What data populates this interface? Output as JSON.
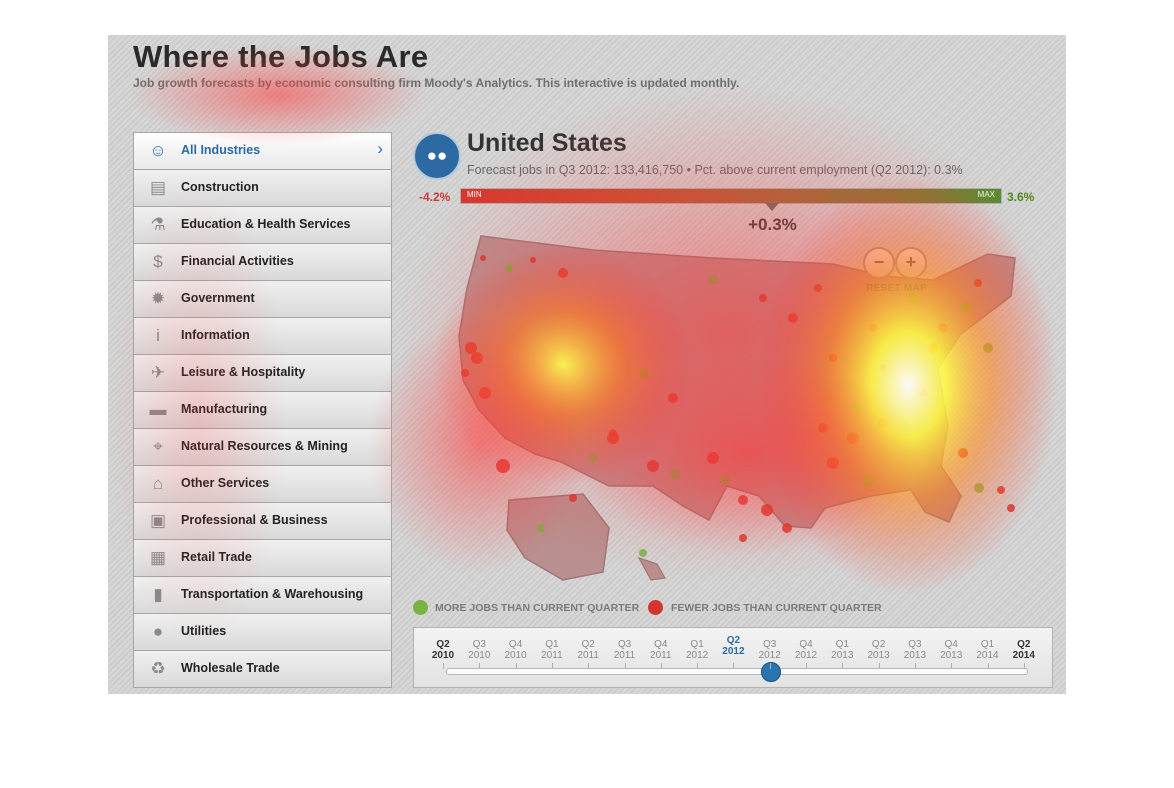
{
  "header": {
    "title": "Where the Jobs Are",
    "subtitle": "Job growth forecasts by economic consulting firm Moody's Analytics. This interactive is updated monthly."
  },
  "sidebar": {
    "items": [
      {
        "label": "All Industries",
        "icon": "people-icon",
        "active": true
      },
      {
        "label": "Construction",
        "icon": "barrier-icon",
        "active": false
      },
      {
        "label": "Education & Health Services",
        "icon": "flask-icon",
        "active": false
      },
      {
        "label": "Financial Activities",
        "icon": "dollar-icon",
        "active": false
      },
      {
        "label": "Government",
        "icon": "star-seal-icon",
        "active": false
      },
      {
        "label": "Information",
        "icon": "info-icon",
        "active": false
      },
      {
        "label": "Leisure & Hospitality",
        "icon": "airplane-icon",
        "active": false
      },
      {
        "label": "Manufacturing",
        "icon": "car-icon",
        "active": false
      },
      {
        "label": "Natural Resources & Mining",
        "icon": "target-icon",
        "active": false
      },
      {
        "label": "Other Services",
        "icon": "house-icon",
        "active": false
      },
      {
        "label": "Professional & Business",
        "icon": "briefcase-icon",
        "active": false
      },
      {
        "label": "Retail Trade",
        "icon": "cart-icon",
        "active": false
      },
      {
        "label": "Transportation & Warehousing",
        "icon": "truck-icon",
        "active": false
      },
      {
        "label": "Utilities",
        "icon": "lightbulb-icon",
        "active": false
      },
      {
        "label": "Wholesale Trade",
        "icon": "recycle-icon",
        "active": false
      }
    ]
  },
  "region": {
    "name": "United States",
    "forecast": "Forecast jobs in Q3 2012: 133,416,750 • Pct. above current employment (Q2 2012): 0.3%"
  },
  "scale": {
    "min_value": "-4.2%",
    "max_value": "3.6%",
    "min_label": "MIN",
    "max_label": "MAX",
    "current": "+0.3%",
    "current_fraction": 0.578
  },
  "map_controls": {
    "zoom_out": "−",
    "zoom_in": "+",
    "reset": "RESET MAP"
  },
  "legend": {
    "more": "MORE JOBS THAN CURRENT QUARTER",
    "fewer": "FEWER JOBS THAN CURRENT QUARTER",
    "more_color": "#7ab343",
    "fewer_color": "#d4362f"
  },
  "timeline": {
    "quarters": [
      {
        "q": "Q2",
        "y": "2010"
      },
      {
        "q": "Q3",
        "y": "2010"
      },
      {
        "q": "Q4",
        "y": "2010"
      },
      {
        "q": "Q1",
        "y": "2011"
      },
      {
        "q": "Q2",
        "y": "2011"
      },
      {
        "q": "Q3",
        "y": "2011"
      },
      {
        "q": "Q4",
        "y": "2011"
      },
      {
        "q": "Q1",
        "y": "2012"
      },
      {
        "q": "Q2",
        "y": "2012"
      },
      {
        "q": "Q3",
        "y": "2012"
      },
      {
        "q": "Q4",
        "y": "2012"
      },
      {
        "q": "Q1",
        "y": "2013"
      },
      {
        "q": "Q2",
        "y": "2013"
      },
      {
        "q": "Q3",
        "y": "2013"
      },
      {
        "q": "Q4",
        "y": "2013"
      },
      {
        "q": "Q1",
        "y": "2014"
      },
      {
        "q": "Q2",
        "y": "2014"
      }
    ],
    "selected_index": 8
  }
}
